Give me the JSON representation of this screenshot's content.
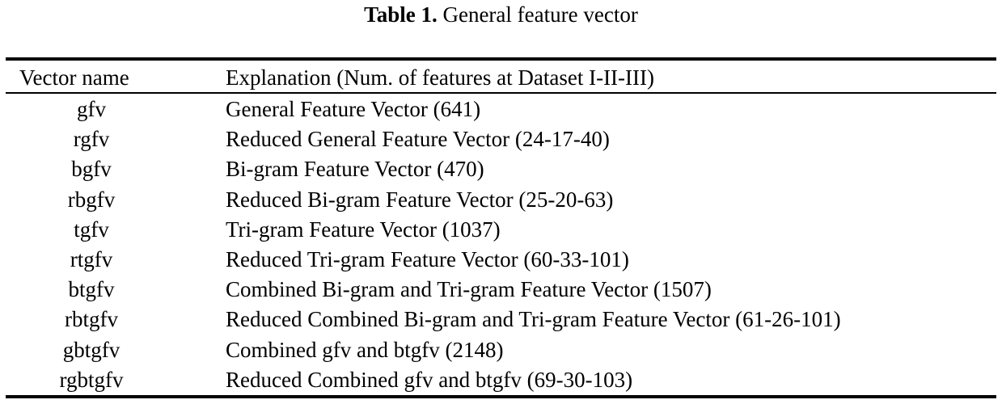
{
  "caption": {
    "label": "Table 1.",
    "title": "General feature vector"
  },
  "table": {
    "headers": {
      "name": "Vector name",
      "explanation": "Explanation (Num. of features at Dataset I-II-III)"
    },
    "rows": [
      {
        "name": "gfv",
        "explanation": "General Feature Vector (641)"
      },
      {
        "name": "rgfv",
        "explanation": "Reduced General Feature Vector (24-17-40)"
      },
      {
        "name": "bgfv",
        "explanation": "Bi-gram Feature Vector (470)"
      },
      {
        "name": "rbgfv",
        "explanation": "Reduced Bi-gram Feature Vector (25-20-63)"
      },
      {
        "name": "tgfv",
        "explanation": "Tri-gram Feature Vector (1037)"
      },
      {
        "name": "rtgfv",
        "explanation": "Reduced Tri-gram Feature Vector (60-33-101)"
      },
      {
        "name": "btgfv",
        "explanation": "Combined Bi-gram and Tri-gram Feature Vector (1507)"
      },
      {
        "name": "rbtgfv",
        "explanation": "Reduced Combined Bi-gram and Tri-gram Feature Vector (61-26-101)"
      },
      {
        "name": "gbtgfv",
        "explanation": "Combined gfv and btgfv (2148)"
      },
      {
        "name": "rgbtgfv",
        "explanation": "Reduced Combined gfv and btgfv (69-30-103)"
      }
    ]
  }
}
